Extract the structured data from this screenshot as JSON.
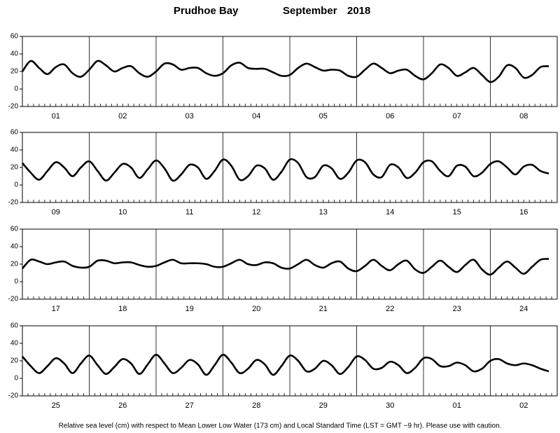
{
  "header": {
    "station": "Prudhoe Bay",
    "month": "September",
    "year": "2018"
  },
  "footer": "Relative sea level (cm) with respect to Mean Lower Low Water (173 cm) and Local Standard Time (LST = GMT −9 hr). Please use with caution.",
  "chart_data": [
    {
      "type": "line",
      "ylim": [
        -20,
        60
      ],
      "yticks": [
        -20,
        0,
        20,
        40,
        60
      ],
      "color": "#000000",
      "categories": [
        "01",
        "02",
        "03",
        "04",
        "05",
        "06",
        "07",
        "08"
      ],
      "values": [
        [
          20,
          32,
          24,
          17,
          25,
          28,
          18,
          14
        ],
        [
          22,
          32,
          27,
          20,
          24,
          26,
          18,
          14
        ],
        [
          20,
          29,
          28,
          22,
          24,
          24,
          18,
          15
        ],
        [
          18,
          27,
          30,
          24,
          23,
          23,
          19,
          15
        ],
        [
          16,
          24,
          29,
          25,
          21,
          22,
          21,
          15
        ],
        [
          14,
          22,
          29,
          24,
          18,
          21,
          22,
          15
        ],
        [
          11,
          18,
          28,
          24,
          15,
          19,
          24,
          16
        ],
        [
          8,
          14,
          27,
          24,
          13,
          16,
          25,
          26
        ]
      ]
    },
    {
      "type": "line",
      "ylim": [
        -20,
        60
      ],
      "yticks": [
        -20,
        0,
        20,
        40,
        60
      ],
      "color": "#000000",
      "categories": [
        "09",
        "10",
        "11",
        "12",
        "13",
        "14",
        "15",
        "16"
      ],
      "values": [
        [
          25,
          14,
          6,
          16,
          26,
          20,
          10,
          20
        ],
        [
          27,
          16,
          5,
          14,
          24,
          20,
          8,
          18
        ],
        [
          28,
          19,
          5,
          12,
          23,
          20,
          7,
          16
        ],
        [
          29,
          22,
          6,
          10,
          22,
          19,
          6,
          15
        ],
        [
          29,
          25,
          9,
          9,
          22,
          19,
          7,
          14
        ],
        [
          28,
          26,
          12,
          9,
          23,
          20,
          8,
          14
        ],
        [
          26,
          27,
          16,
          10,
          22,
          21,
          10,
          14
        ],
        [
          24,
          27,
          20,
          12,
          21,
          23,
          16,
          13
        ]
      ]
    },
    {
      "type": "line",
      "ylim": [
        -20,
        60
      ],
      "yticks": [
        -20,
        0,
        20,
        40,
        60
      ],
      "color": "#000000",
      "categories": [
        "17",
        "18",
        "19",
        "20",
        "21",
        "22",
        "23",
        "24"
      ],
      "values": [
        [
          15,
          25,
          23,
          20,
          22,
          23,
          18,
          16
        ],
        [
          17,
          24,
          24,
          21,
          22,
          22,
          19,
          17
        ],
        [
          18,
          22,
          25,
          21,
          21,
          21,
          20,
          17
        ],
        [
          17,
          21,
          25,
          20,
          19,
          22,
          21,
          16
        ],
        [
          15,
          20,
          25,
          19,
          16,
          21,
          23,
          15
        ],
        [
          12,
          18,
          25,
          18,
          13,
          20,
          24,
          14
        ],
        [
          10,
          17,
          24,
          17,
          11,
          19,
          25,
          14
        ],
        [
          8,
          16,
          23,
          16,
          9,
          17,
          25,
          26
        ]
      ]
    },
    {
      "type": "line",
      "ylim": [
        -20,
        60
      ],
      "yticks": [
        -20,
        0,
        20,
        40,
        60
      ],
      "color": "#000000",
      "categories": [
        "25",
        "26",
        "27",
        "28",
        "29",
        "30",
        "01",
        "02"
      ],
      "values": [
        [
          25,
          14,
          6,
          14,
          23,
          17,
          6,
          17
        ],
        [
          26,
          15,
          5,
          13,
          22,
          17,
          5,
          16
        ],
        [
          27,
          17,
          6,
          12,
          21,
          16,
          4,
          15
        ],
        [
          27,
          18,
          6,
          11,
          21,
          16,
          4,
          14
        ],
        [
          26,
          20,
          8,
          11,
          20,
          15,
          5,
          13
        ],
        [
          25,
          21,
          11,
          12,
          19,
          15,
          6,
          12
        ],
        [
          23,
          22,
          14,
          14,
          18,
          15,
          8,
          11
        ],
        [
          20,
          22,
          17,
          15,
          17,
          15,
          11,
          8
        ]
      ]
    }
  ]
}
